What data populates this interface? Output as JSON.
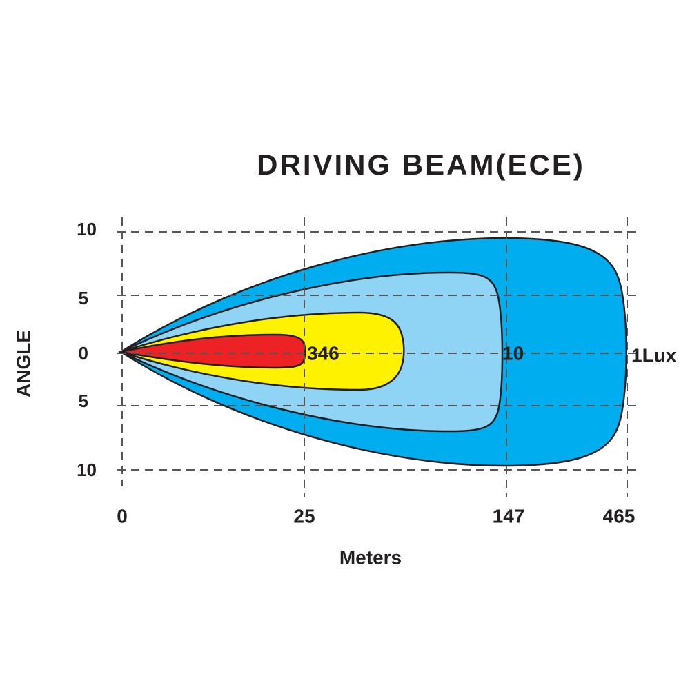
{
  "title": "DRIVING  BEAM(ECE)",
  "y_axis": {
    "label": "ANGLE",
    "ticks": [
      "10",
      "5",
      "0",
      "5",
      "10"
    ]
  },
  "x_axis": {
    "label": "Meters",
    "ticks": [
      "0",
      "25",
      "147",
      "465"
    ]
  },
  "zones": [
    {
      "label": "346"
    },
    {
      "label": "10"
    },
    {
      "label": "1Lux"
    }
  ]
}
